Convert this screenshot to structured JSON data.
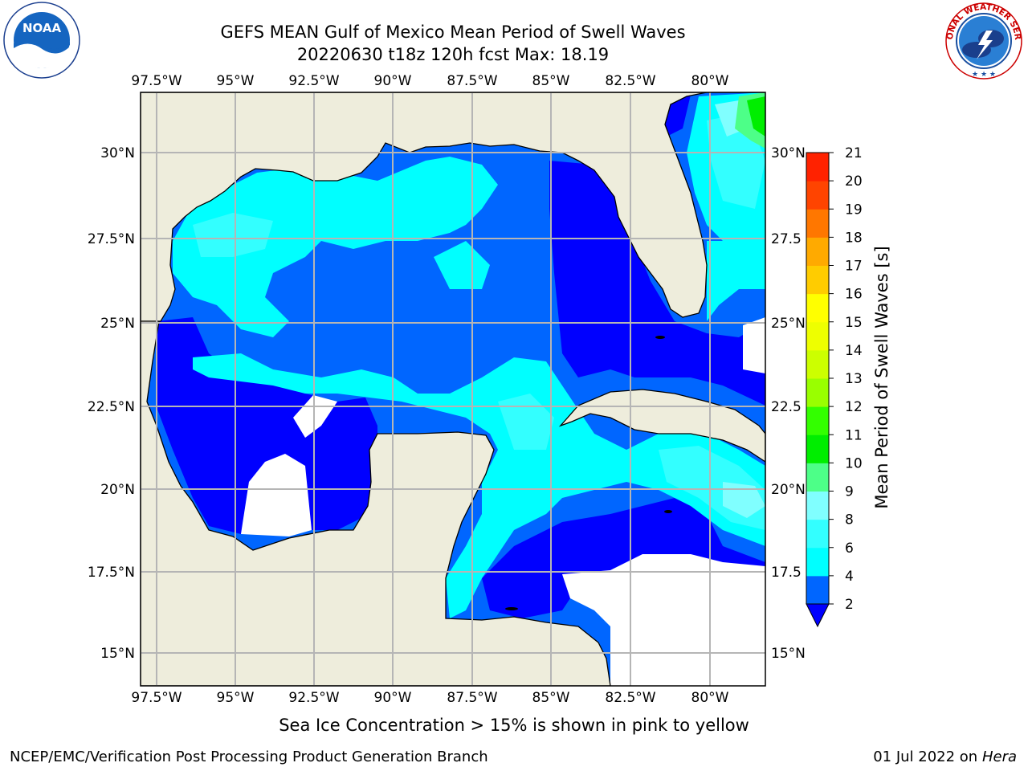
{
  "header": {
    "title_line1": "GEFS MEAN Gulf of Mexico Mean Period of Swell Waves",
    "title_line2": "20220630 t18z 120h fcst   Max: 18.19"
  },
  "map": {
    "lon_ticks": [
      "97.5°W",
      "95°W",
      "92.5°W",
      "90°W",
      "87.5°W",
      "85°W",
      "82.5°W",
      "80°W"
    ],
    "lat_ticks_left": [
      "30°N",
      "27.5°N",
      "25°N",
      "22.5°N",
      "20°N",
      "17.5°N",
      "15°N"
    ],
    "lat_ticks_right": [
      "30°N",
      "27.5",
      "25°N",
      "22.5",
      "20°N",
      "17.5",
      "15°N"
    ],
    "colors": {
      "land": "#eeeddc",
      "missing": "#ffffff",
      "grid": "#b5b5b5",
      "coast": "#000000"
    }
  },
  "colorbar": {
    "label": "Mean Period of Swell Waves [s]",
    "ticks": [
      "2",
      "4",
      "6",
      "8",
      "9",
      "10",
      "11",
      "12",
      "13",
      "14",
      "15",
      "16",
      "17",
      "18",
      "19",
      "20",
      "21"
    ],
    "bins": [
      {
        "color": "#0000ff",
        "role": "under"
      },
      {
        "color": "#0066ff"
      },
      {
        "color": "#00ffff"
      },
      {
        "color": "#33ffff"
      },
      {
        "color": "#80ffff"
      },
      {
        "color": "#4dff88"
      },
      {
        "color": "#00ee00"
      },
      {
        "color": "#33ff00"
      },
      {
        "color": "#99ff00"
      },
      {
        "color": "#ccff00"
      },
      {
        "color": "#eeff00"
      },
      {
        "color": "#ffff00"
      },
      {
        "color": "#ffcc00"
      },
      {
        "color": "#ffaa00"
      },
      {
        "color": "#ff7700"
      },
      {
        "color": "#ff4400"
      },
      {
        "color": "#ff2200"
      },
      {
        "color": "#ff0000"
      }
    ]
  },
  "footer": {
    "center_note": "Sea Ice Concentration > 15% is shown in pink to yellow",
    "left_credit": "NCEP/EMC/Verification Post Processing Product Generation Branch",
    "right_date": "01 Jul 2022 on",
    "right_host": "Hera"
  },
  "logos": {
    "left_name": "NOAA",
    "right_name": "NATIONAL WEATHER SERVICE"
  }
}
